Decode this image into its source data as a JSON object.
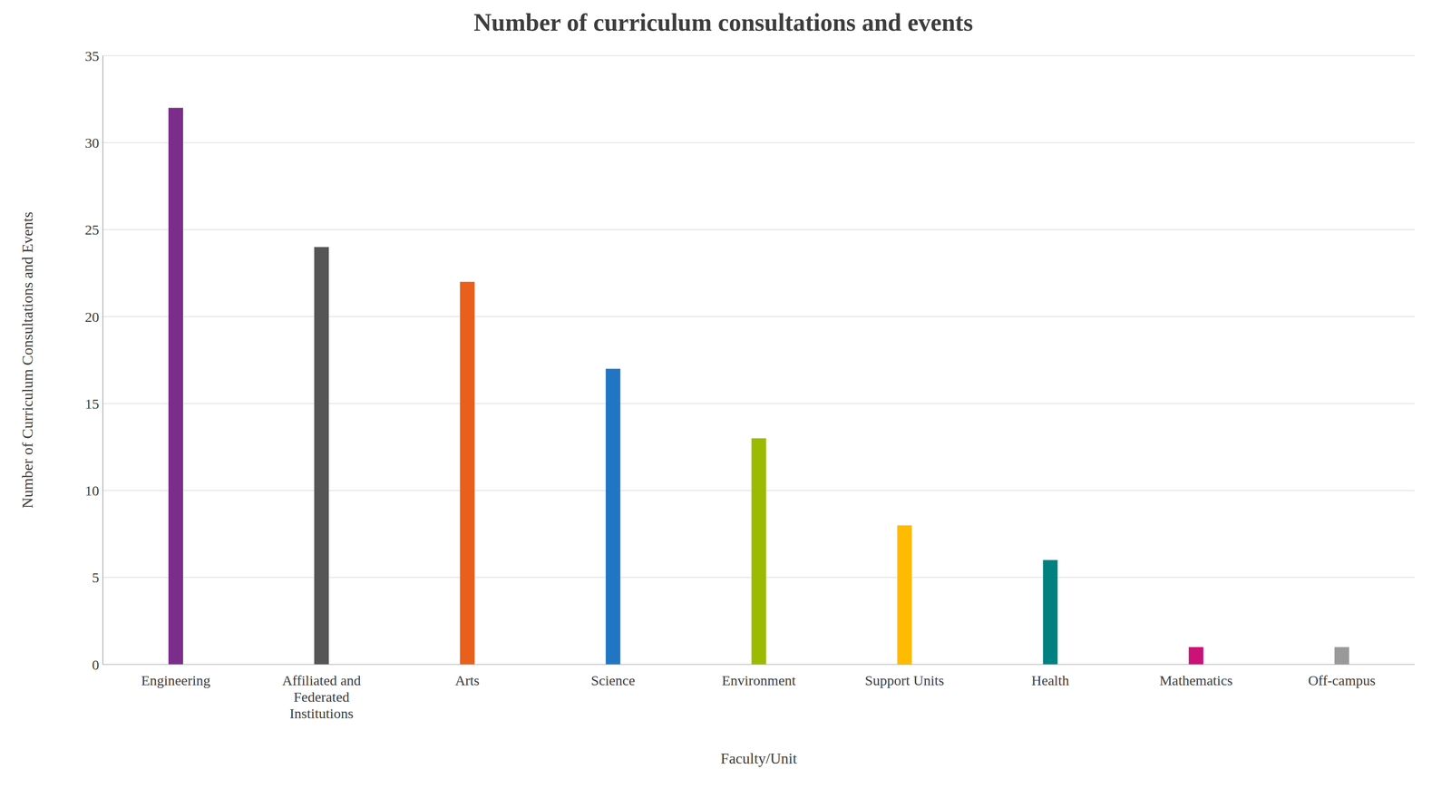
{
  "chart_data": {
    "type": "bar",
    "title": "Number of curriculum consultations and events",
    "categories": [
      "Engineering",
      "Affiliated and\nFederated\nInstitutions",
      "Arts",
      "Science",
      "Environment",
      "Support Units",
      "Health",
      "Mathematics",
      "Off-campus"
    ],
    "values": [
      32,
      24,
      22,
      17,
      13,
      8,
      6,
      1,
      1
    ],
    "colors": [
      "#7B2D8B",
      "#555555",
      "#E8601C",
      "#2176C4",
      "#9BBB00",
      "#FFBB00",
      "#008080",
      "#CC1177",
      "#999999"
    ],
    "xlabel": "Faculty/Unit",
    "ylabel": "Number of Curriculum Consultations and Events",
    "ylim": [
      0,
      35
    ],
    "yticks": [
      0,
      5,
      10,
      15,
      20,
      25,
      30,
      35
    ],
    "grid": true
  }
}
